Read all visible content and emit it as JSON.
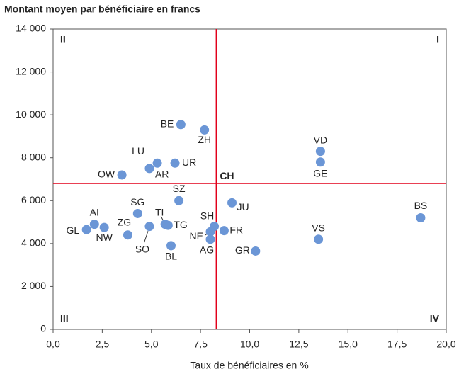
{
  "chart_data": {
    "type": "scatter",
    "title": "Montant moyen par bénéficiaire en francs",
    "x_label": "Taux de bénéficiaires en %",
    "color": "#6b96d6",
    "labels": [
      "BE",
      "ZH",
      "VD",
      "GE",
      "LU",
      "UR",
      "AR",
      "OW",
      "SZ",
      "JU",
      "BS",
      "SG",
      "AI",
      "GL",
      "NW",
      "ZG",
      "SO",
      "TI",
      "TG",
      "SH",
      "NE",
      "FR",
      "AG",
      "VS",
      "GR",
      "BL"
    ],
    "x": [
      6.5,
      7.7,
      13.6,
      13.6,
      5.3,
      6.2,
      4.9,
      3.5,
      6.4,
      9.1,
      18.7,
      4.3,
      2.1,
      1.7,
      2.6,
      3.8,
      4.9,
      5.7,
      5.85,
      8.2,
      8.0,
      8.7,
      8.0,
      13.5,
      10.3,
      6.0
    ],
    "y": [
      9550,
      9300,
      8300,
      7800,
      7750,
      7750,
      7500,
      7200,
      6000,
      5900,
      5200,
      5400,
      4900,
      4650,
      4750,
      4400,
      4800,
      4900,
      4850,
      4800,
      4550,
      4600,
      4200,
      4200,
      3650,
      3900
    ],
    "xlim": [
      0,
      20
    ],
    "xticks": [
      {
        "value": 0,
        "label": "0,0"
      },
      {
        "value": 2.5,
        "label": "2,5"
      },
      {
        "value": 5,
        "label": "5,0"
      },
      {
        "value": 7.5,
        "label": "7,5"
      },
      {
        "value": 10,
        "label": "10,0"
      },
      {
        "value": 12.5,
        "label": "12,5"
      },
      {
        "value": 15,
        "label": "15,0"
      },
      {
        "value": 17.5,
        "label": "17,5"
      },
      {
        "value": 20,
        "label": "20,0"
      }
    ],
    "ylim": [
      0,
      14000
    ],
    "yticks": [
      0,
      {
        "value": 2000,
        "label": "2 000"
      },
      {
        "value": 4000,
        "label": "4 000"
      },
      {
        "value": 6000,
        "label": "6 000"
      },
      {
        "value": 8000,
        "label": "8 000"
      },
      {
        "value": 10000,
        "label": "10 000"
      },
      {
        "value": 12000,
        "label": "12 000"
      },
      {
        "value": 14000,
        "label": "14 000"
      }
    ],
    "reference": {
      "label": "CH",
      "x": 8.3,
      "y": 6800,
      "color": "#e2001a"
    },
    "quadrants": [
      "I",
      "II",
      "III",
      "IV"
    ]
  }
}
